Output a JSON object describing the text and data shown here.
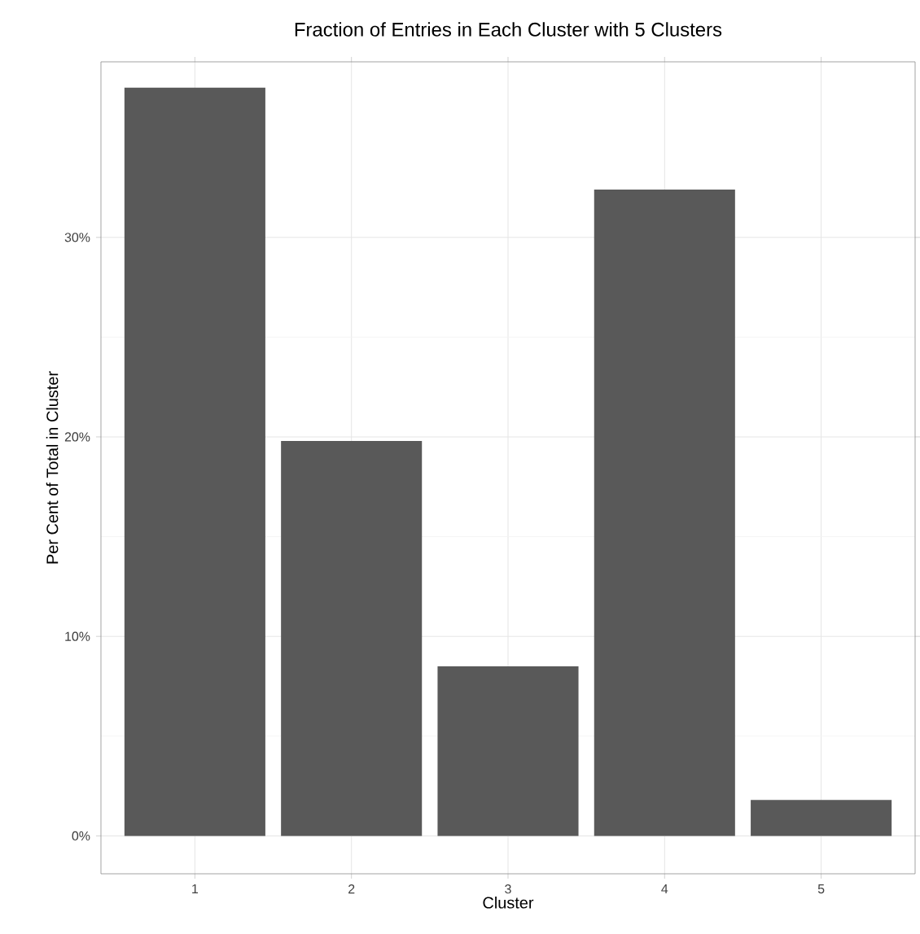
{
  "chart_data": {
    "type": "bar",
    "title": "Fraction of Entries in Each Cluster with 5 Clusters",
    "xlabel": "Cluster",
    "ylabel": "Per Cent of Total in Cluster",
    "categories": [
      "1",
      "2",
      "3",
      "4",
      "5"
    ],
    "values": [
      37.5,
      19.8,
      8.5,
      32.4,
      1.8
    ],
    "color": "#595959",
    "ylim": [
      -1.9,
      38.8
    ],
    "yticks": [
      {
        "value": 0,
        "label": "0%"
      },
      {
        "value": 10,
        "label": "10%"
      },
      {
        "value": 20,
        "label": "20%"
      },
      {
        "value": 30,
        "label": "30%"
      }
    ],
    "grid": true
  }
}
